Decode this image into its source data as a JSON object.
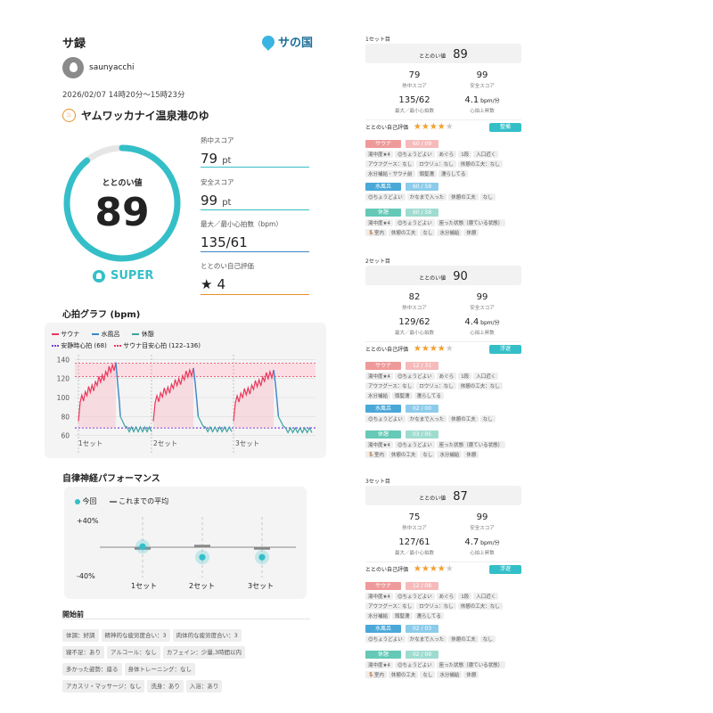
{
  "header": {
    "title": "サ録",
    "logo_text": "サの国"
  },
  "user": {
    "name": "saunyacchi",
    "datetime": "2026/02/07 14時20分～15時23分"
  },
  "facility": {
    "name": "ヤムワッカナイ温泉港のゆ"
  },
  "score": {
    "gauge_label": "ととのい値",
    "gauge_value": "89",
    "gauge_fraction": 0.89,
    "rank": "SUPER",
    "metrics": [
      {
        "label": "熱中スコア",
        "value": "79",
        "unit": "pt"
      },
      {
        "label": "安全スコア",
        "value": "99",
        "unit": "pt"
      },
      {
        "label": "最大／最小心拍数（bpm）",
        "value": "135/61",
        "unit": ""
      },
      {
        "label": "ととのい自己評価",
        "value": "4",
        "unit": ""
      }
    ]
  },
  "heart": {
    "title": "心拍グラフ (bpm)",
    "legend": [
      {
        "label": "サウナ",
        "color": "#e8385b"
      },
      {
        "label": "水風呂",
        "color": "#3a86c8"
      },
      {
        "label": "休憩",
        "color": "#3aa3a3"
      },
      {
        "label": "安静時心拍 (68)",
        "color": "#7b3fd6"
      },
      {
        "label": "サウナ目安心拍 (122–136)",
        "color": "#e8385b"
      }
    ],
    "y_ticks": [
      "140",
      "120",
      "100",
      "80",
      "60"
    ],
    "sets": [
      "1セット",
      "2セット",
      "3セット"
    ]
  },
  "chart_data": {
    "type": "line",
    "ylim": [
      55,
      145
    ],
    "rest_hr": 68,
    "target_range": [
      122,
      136
    ],
    "series": [
      {
        "name": "サウナ",
        "color": "#e8385b",
        "x": [
          0,
          5,
          10,
          15,
          20,
          25,
          30,
          34,
          38,
          42
        ],
        "y": [
          95,
          105,
          110,
          114,
          118,
          122,
          125,
          128,
          132,
          135
        ]
      },
      {
        "name": "水風呂",
        "color": "#3a86c8",
        "x": [
          42,
          44,
          46,
          48
        ],
        "y": [
          135,
          110,
          90,
          78
        ]
      },
      {
        "name": "休憩",
        "color": "#3aa3a3",
        "x": [
          48,
          52,
          56,
          60
        ],
        "y": [
          78,
          70,
          66,
          72
        ]
      }
    ]
  },
  "autonomic": {
    "title": "自律神経パフォーマンス",
    "legend_now": "今回",
    "legend_avg": "これまでの平均",
    "ymax": "+40%",
    "ymin": "-40%",
    "sets": [
      "1セット",
      "2セット",
      "3セット"
    ],
    "now_values": [
      1,
      -14,
      -14
    ],
    "avg_values": [
      -2,
      2,
      -2
    ]
  },
  "before": {
    "title": "開始前",
    "tags": [
      "体調：好調",
      "精神的な疲労度合い：3",
      "肉体的な疲労度合い：3",
      "寝不足：あり",
      "アルコール：なし",
      "カフェイン：少量,3時間以内",
      "多かった姿勢：座る",
      "身体トレーニング：なし",
      "アカスリ・マッサージ：なし",
      "洗身：あり",
      "入浴：あり"
    ]
  },
  "right_sets": [
    {
      "header": "1セット目",
      "score_label": "ととのい値",
      "score": "89",
      "stats": [
        {
          "value": "79",
          "label": "熱中スコア"
        },
        {
          "value": "99",
          "label": "安全スコア"
        },
        {
          "value": "135/62",
          "label": "最大／最小心拍数"
        },
        {
          "value": "4.1",
          "unit": "bpm/分",
          "label": "心拍上昇数"
        }
      ],
      "self_eval_label": "ととのい自己評価",
      "stars": 4,
      "badge": "整備",
      "sauna": {
        "label": "サウナ",
        "value": "60 / 09"
      },
      "sauna_tags": [
        "湯中度★4",
        "😊ちょうどよい",
        "あぐら",
        "1段",
        "入口近く",
        "アウフグース：なし",
        "ロウリュ：なし",
        "休憩の工夫：なし",
        "水分補給・サウナ前",
        "頭髪濡",
        "濡らしてる"
      ],
      "mizu": {
        "label": "水風呂",
        "value": "60 / 59"
      },
      "mizu_tags": [
        "😊ちょうどよい",
        "かなまで入った",
        "休憩の工夫",
        "なし"
      ],
      "kyu": {
        "label": "休憩",
        "value": "60 / 58"
      },
      "kyu_tags": [
        "湯中度★4",
        "😊ちょうどよい",
        "座った状態（寝ている状態）",
        "🪑室内",
        "休憩の工夫",
        "なし",
        "水分補給",
        "休憩"
      ]
    },
    {
      "header": "2セット目",
      "score_label": "ととのい値",
      "score": "90",
      "stats": [
        {
          "value": "82",
          "label": "熱中スコア"
        },
        {
          "value": "99",
          "label": "安全スコア"
        },
        {
          "value": "129/62",
          "label": "最大／最小心拍数"
        },
        {
          "value": "4.4",
          "unit": "bpm/分",
          "label": "心拍上昇数"
        }
      ],
      "self_eval_label": "ととのい自己評価",
      "stars": 4,
      "badge": "浮遊",
      "sauna": {
        "label": "サウナ",
        "value": "12 / 31"
      },
      "sauna_tags": [
        "湯中度★4",
        "😊ちょうどよい",
        "あぐら",
        "1段",
        "入口近く",
        "アウフグース：なし",
        "ロウリュ：なし",
        "休憩の工夫：なし",
        "水分補給",
        "頭髪濡",
        "濡らしてる"
      ],
      "mizu": {
        "label": "水風呂",
        "value": "02 / 00"
      },
      "mizu_tags": [
        "😊ちょうどよい",
        "かなまで入った",
        "休憩の工夫",
        "なし"
      ],
      "kyu": {
        "label": "休憩",
        "value": "03 / 05"
      },
      "kyu_tags": [
        "湯中度★4",
        "😊ちょうどよい",
        "座った状態（寝ている状態）",
        "🪑室内",
        "休憩の工夫",
        "なし",
        "水分補給",
        "休憩"
      ]
    },
    {
      "header": "3セット目",
      "score_label": "ととのい値",
      "score": "87",
      "stats": [
        {
          "value": "75",
          "label": "熱中スコア"
        },
        {
          "value": "99",
          "label": "安全スコア"
        },
        {
          "value": "127/61",
          "label": "最大／最小心拍数"
        },
        {
          "value": "4.7",
          "unit": "bpm/分",
          "label": "心拍上昇数"
        }
      ],
      "self_eval_label": "ととのい自己評価",
      "stars": 4,
      "badge": "浮遊",
      "sauna": {
        "label": "サウナ",
        "value": "12 / 08"
      },
      "sauna_tags": [
        "湯中度★4",
        "😊ちょうどよい",
        "あぐら",
        "1段",
        "入口近く",
        "アウフグース：なし",
        "ロウリュ：なし",
        "休憩の工夫：なし",
        "水分補給",
        "頭髪濡",
        "濡らしてる"
      ],
      "mizu": {
        "label": "水風呂",
        "value": "02 / 03"
      },
      "mizu_tags": [
        "😊ちょうどよい",
        "かなまで入った",
        "休憩の工夫",
        "なし"
      ],
      "kyu": {
        "label": "休憩",
        "value": "02 / 09"
      },
      "kyu_tags": [
        "湯中度★4",
        "😊ちょうどよい",
        "座った状態（寝ている状態）",
        "🪑室内",
        "休憩の工夫",
        "なし",
        "水分補給",
        "休憩"
      ]
    }
  ],
  "colors": {
    "accent": "#34bfc8",
    "sauna": "#e8385b",
    "water": "#3a86c8",
    "rest": "#3aa3a3",
    "star": "#f0a030"
  }
}
